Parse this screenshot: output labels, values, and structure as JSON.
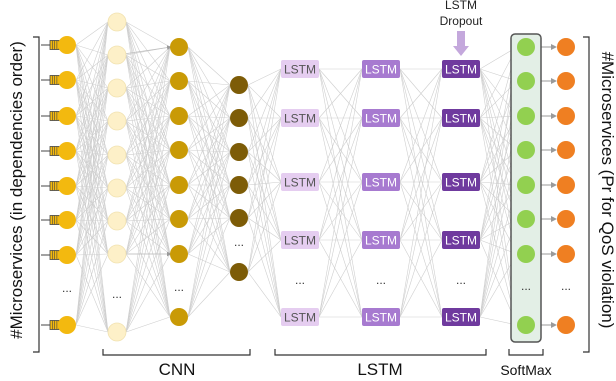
{
  "left_axis_label": "#Microservices (in dependencies order)",
  "right_axis_label": "#Microservices (Pr for QoS violation)",
  "dropout_label_line1": "LSTM",
  "dropout_label_line2": "Dropout",
  "lstm_cell_label": "LSTM",
  "ellipsis": "...",
  "sections": {
    "cnn": "CNN",
    "lstm": "LSTM",
    "softmax": "SoftMax"
  },
  "colors": {
    "input_node": "#f3b90f",
    "cnn_layer1": "#fdf0c8",
    "cnn_layer2": "#c99a06",
    "cnn_layer3": "#7d5c07",
    "lstm_layer1": "#e5cdf0",
    "lstm_layer2": "#a77ad0",
    "lstm_layer3": "#6f3a9e",
    "softmax_node": "#92d050",
    "softmax_box": "#e3efe6",
    "output_node": "#ef7f22",
    "edge": "#cfcfcf",
    "arrow": "#c4a8dc"
  }
}
